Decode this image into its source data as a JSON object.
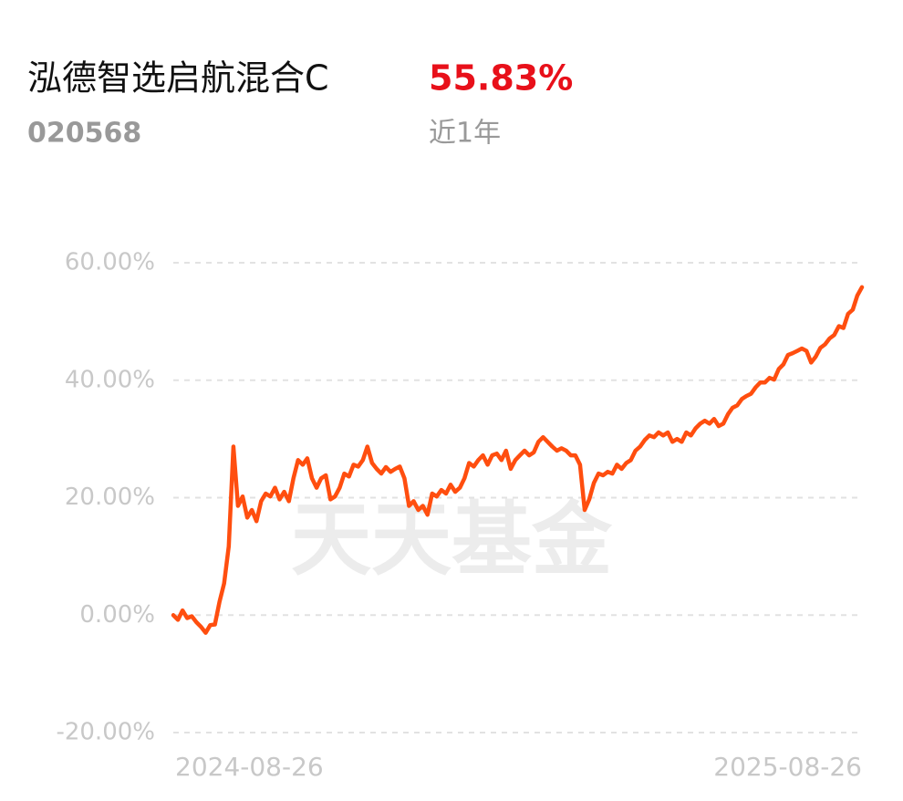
{
  "header": {
    "title": "泓德智选启航混合C",
    "return": "55.83%",
    "code": "020568",
    "period": "近1年"
  },
  "chart_data": {
    "type": "line",
    "watermark": "天天基金",
    "categories": [
      "2024-08-26",
      null,
      null,
      null,
      null,
      null,
      null,
      null,
      null,
      null,
      null,
      null,
      null,
      null,
      null,
      null,
      null,
      null,
      null,
      null,
      null,
      null,
      null,
      null,
      null,
      null,
      null,
      null,
      null,
      null,
      null,
      null,
      null,
      null,
      null,
      null,
      null,
      null,
      null,
      null,
      null,
      null,
      null,
      null,
      null,
      null,
      null,
      null,
      null,
      null,
      null,
      null,
      null,
      null,
      null,
      null,
      null,
      null,
      null,
      null,
      null,
      null,
      null,
      null,
      null,
      null,
      null,
      null,
      null,
      null,
      null,
      null,
      null,
      null,
      null,
      null,
      null,
      null,
      null,
      null,
      null,
      null,
      null,
      null,
      null,
      null,
      null,
      null,
      null,
      null,
      null,
      null,
      null,
      null,
      null,
      null,
      null,
      null,
      null,
      null,
      null,
      null,
      null,
      null,
      null,
      null,
      null,
      null,
      null,
      null,
      null,
      null,
      null,
      null,
      null,
      null,
      null,
      null,
      null,
      null,
      null,
      null,
      null,
      null,
      null,
      null,
      null,
      null,
      null,
      null,
      null,
      null,
      null,
      null,
      null,
      null,
      null,
      null,
      null,
      null,
      null,
      null,
      null,
      null,
      null,
      null,
      null,
      null,
      null,
      "2025-08-26"
    ],
    "series": [
      {
        "color": "#ff4e0f",
        "values": [
          0,
          -0.8,
          0.8,
          -0.5,
          -0.2,
          -1.2,
          -2.0,
          -3.0,
          -1.7,
          -1.6,
          2.3,
          5.4,
          11.7,
          28.7,
          18.6,
          20.2,
          16.6,
          17.9,
          16.0,
          19.4,
          20.7,
          20.2,
          21.7,
          19.7,
          21.0,
          19.4,
          23.3,
          26.4,
          25.6,
          26.7,
          23.3,
          21.7,
          23.3,
          23.8,
          19.7,
          20.2,
          21.7,
          24.1,
          23.6,
          25.6,
          25.3,
          26.4,
          28.7,
          25.9,
          24.9,
          24.1,
          25.2,
          24.4,
          24.9,
          25.3,
          23.3,
          18.6,
          19.4,
          17.9,
          18.6,
          17.1,
          20.7,
          20.2,
          21.3,
          20.7,
          22.2,
          21.0,
          21.7,
          23.3,
          25.9,
          25.3,
          26.4,
          27.2,
          25.6,
          27.2,
          27.5,
          26.4,
          28.0,
          24.9,
          26.4,
          27.2,
          28.0,
          27.2,
          27.7,
          29.5,
          30.3,
          29.5,
          28.7,
          28.0,
          28.4,
          28.0,
          27.2,
          27.2,
          25.6,
          17.9,
          19.7,
          22.5,
          24.1,
          23.8,
          24.4,
          24.1,
          25.6,
          24.9,
          25.9,
          26.4,
          28.0,
          28.7,
          29.8,
          30.6,
          30.3,
          31.1,
          30.6,
          31.1,
          29.5,
          30.0,
          29.5,
          31.1,
          30.6,
          31.8,
          32.6,
          33.1,
          32.6,
          33.4,
          32.2,
          32.6,
          34.2,
          35.3,
          35.7,
          36.8,
          37.3,
          37.7,
          38.8,
          39.6,
          39.6,
          40.4,
          40.1,
          41.9,
          42.7,
          44.3,
          44.6,
          45.0,
          45.4,
          45.0,
          43.0,
          44.0,
          45.5,
          46.1,
          47.1,
          47.7,
          49.2,
          48.9,
          51.3,
          52.0,
          54.4,
          55.83
        ]
      }
    ],
    "ylim": [
      -20,
      60
    ],
    "yticks": [
      {
        "value": -20,
        "label": "-20.00%"
      },
      {
        "value": 0,
        "label": "0.00%"
      },
      {
        "value": 20,
        "label": "20.00%"
      },
      {
        "value": 40,
        "label": "40.00%"
      },
      {
        "value": 60,
        "label": "60.00%"
      }
    ],
    "grid": true
  }
}
